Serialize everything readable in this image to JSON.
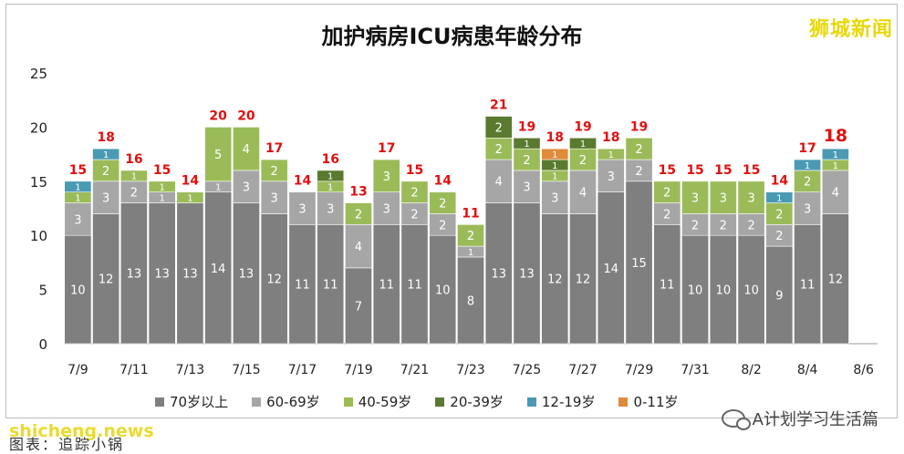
{
  "watermark": "狮城新闻",
  "footer": {
    "site": "shicheng.news",
    "caption": "图表：追踪小锅",
    "brand": "A计划学习生活篇"
  },
  "colors": {
    "70岁以上": "#7f7f7f",
    "60-69岁": "#a6a6a6",
    "40-59岁": "#9bbb59",
    "20-39岁": "#5a7a2f",
    "12-19岁": "#4a9ab4",
    "0-11岁": "#e08a3c",
    "total_label": "#e01010"
  },
  "chart_data": {
    "type": "bar",
    "stacked": true,
    "title": "加护病房ICU病患年龄分布",
    "xlabel": "",
    "ylabel": "",
    "ylim": [
      0,
      25
    ],
    "yticks": [
      0,
      5,
      10,
      15,
      20,
      25
    ],
    "grid": false,
    "legend_position": "bottom",
    "categories": [
      "7/9",
      "7/10",
      "7/11",
      "7/12",
      "7/13",
      "7/14",
      "7/15",
      "7/16",
      "7/17",
      "7/18",
      "7/19",
      "7/20",
      "7/21",
      "7/22",
      "7/23",
      "7/24",
      "7/25",
      "7/26",
      "7/27",
      "7/28",
      "7/29",
      "7/30",
      "7/31",
      "8/1",
      "8/2",
      "8/3",
      "8/4",
      "8/5",
      "8/6"
    ],
    "tick_labels": [
      "7/9",
      "",
      "7/11",
      "",
      "7/13",
      "",
      "7/15",
      "",
      "7/17",
      "",
      "7/19",
      "",
      "7/21",
      "",
      "7/23",
      "",
      "7/25",
      "",
      "7/27",
      "",
      "7/29",
      "",
      "7/31",
      "",
      "8/2",
      "",
      "8/4",
      "",
      "8/6"
    ],
    "series": [
      {
        "name": "70岁以上",
        "values": [
          10,
          12,
          13,
          13,
          13,
          14,
          13,
          12,
          11,
          11,
          7,
          11,
          11,
          10,
          8,
          13,
          13,
          12,
          12,
          14,
          15,
          11,
          10,
          10,
          10,
          9,
          11,
          12,
          0
        ]
      },
      {
        "name": "60-69岁",
        "values": [
          3,
          3,
          2,
          1,
          0,
          1,
          3,
          3,
          3,
          3,
          4,
          3,
          2,
          2,
          1,
          4,
          3,
          3,
          4,
          3,
          2,
          2,
          2,
          2,
          2,
          2,
          3,
          4,
          0
        ]
      },
      {
        "name": "40-59岁",
        "values": [
          1,
          2,
          1,
          1,
          1,
          5,
          4,
          2,
          0,
          1,
          2,
          3,
          2,
          2,
          2,
          2,
          2,
          1,
          2,
          1,
          2,
          2,
          3,
          3,
          3,
          2,
          2,
          1,
          0
        ]
      },
      {
        "name": "20-39岁",
        "values": [
          0,
          0,
          0,
          0,
          0,
          0,
          0,
          0,
          0,
          1,
          0,
          0,
          0,
          0,
          0,
          2,
          1,
          1,
          1,
          0,
          0,
          0,
          0,
          0,
          0,
          0,
          0,
          0,
          0
        ]
      },
      {
        "name": "12-19岁",
        "values": [
          1,
          1,
          0,
          0,
          0,
          0,
          0,
          0,
          0,
          0,
          0,
          0,
          0,
          0,
          0,
          0,
          0,
          0,
          0,
          0,
          0,
          0,
          0,
          0,
          0,
          1,
          1,
          1,
          0
        ]
      },
      {
        "name": "0-11岁",
        "values": [
          0,
          0,
          0,
          0,
          0,
          0,
          0,
          0,
          0,
          0,
          0,
          0,
          0,
          0,
          0,
          0,
          0,
          1,
          0,
          0,
          0,
          0,
          0,
          0,
          0,
          0,
          0,
          0,
          0
        ]
      }
    ],
    "totals": [
      15,
      18,
      16,
      15,
      14,
      20,
      20,
      17,
      14,
      16,
      13,
      17,
      15,
      14,
      11,
      21,
      19,
      18,
      19,
      18,
      19,
      15,
      15,
      15,
      15,
      14,
      17,
      18,
      null
    ],
    "highlight_index": 27
  }
}
